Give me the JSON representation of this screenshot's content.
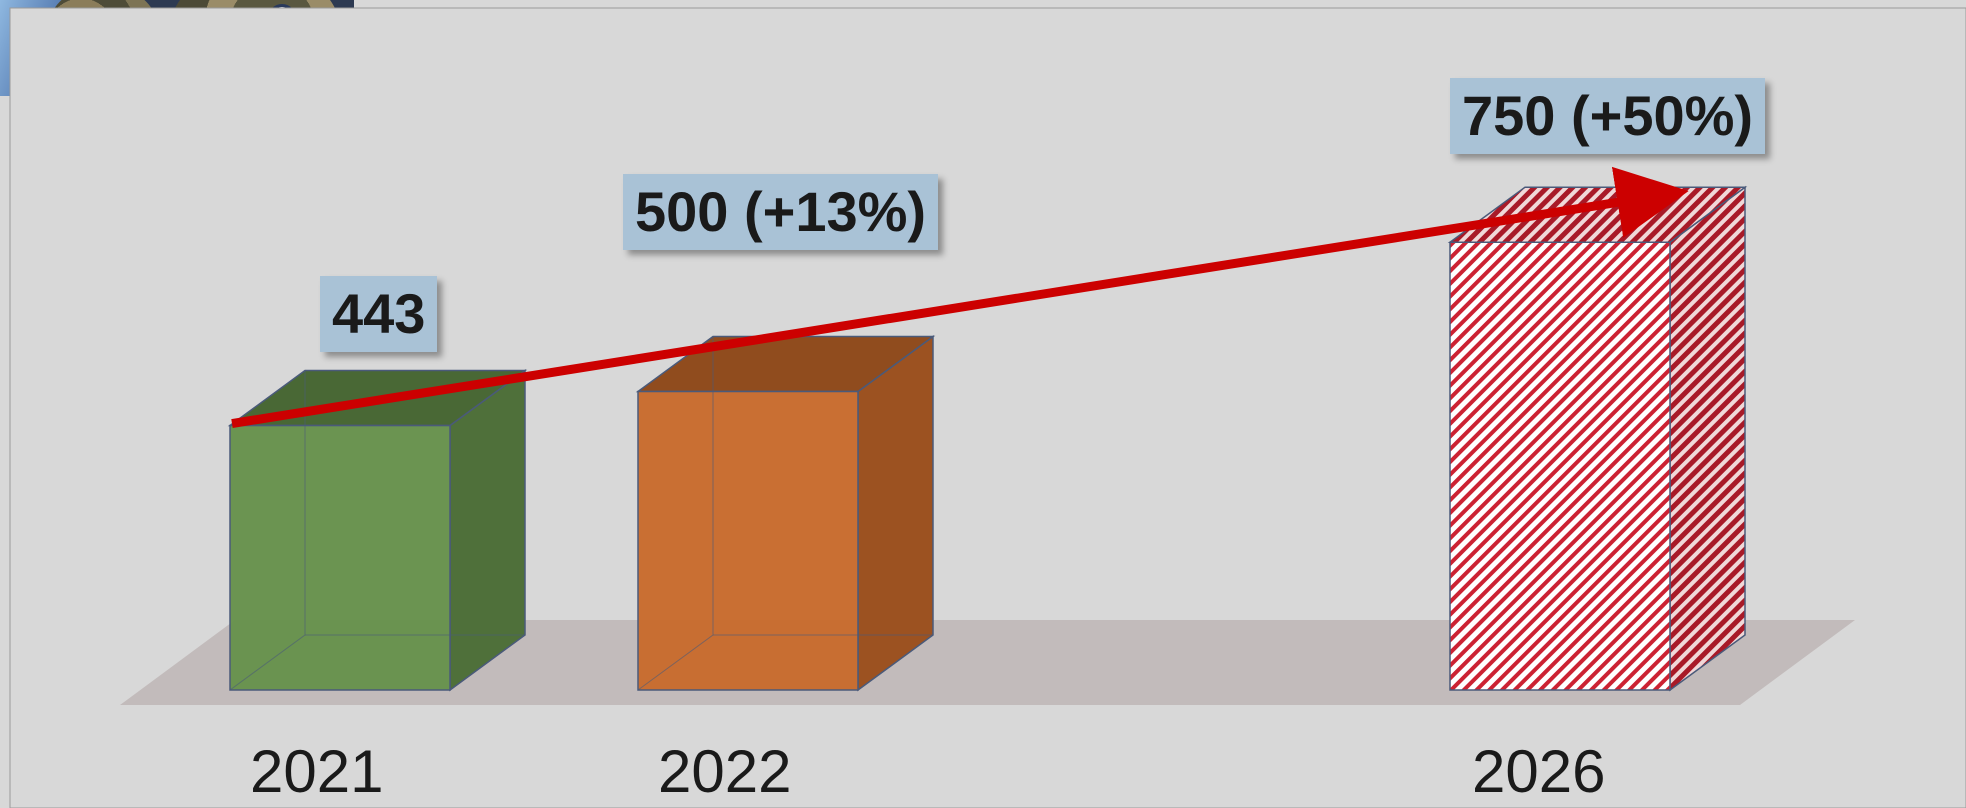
{
  "chart_data": {
    "type": "bar",
    "categories": [
      "2021",
      "2022",
      "2026"
    ],
    "values": [
      443,
      500,
      750
    ],
    "data_labels": [
      "443",
      "500 (+13%)",
      "750 (+50%)"
    ],
    "series_colors": [
      "#65904a",
      "#c8692a",
      "#c0202a"
    ],
    "projected": [
      false,
      false,
      true
    ],
    "trend_arrow_color": "#cc0000",
    "title": "",
    "xlabel": "",
    "ylabel": "",
    "grid": false,
    "legend": "none"
  }
}
